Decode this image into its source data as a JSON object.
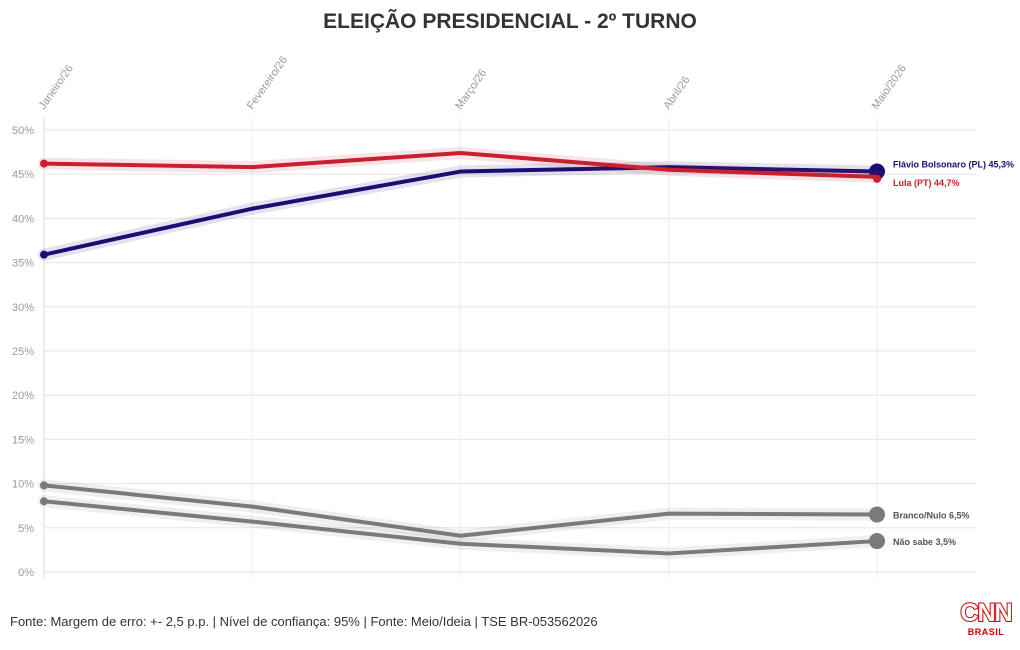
{
  "chart_data": {
    "type": "line",
    "title": "ELEIÇÃO PRESIDENCIAL - 2º TURNO",
    "x": [
      "Janeiro/26",
      "Fevereiro/26",
      "Março/26",
      "Abril/26",
      "Maio/2026"
    ],
    "ylim": [
      0,
      50
    ],
    "y_ticks": [
      "0%",
      "5%",
      "10%",
      "15%",
      "20%",
      "25%",
      "30%",
      "35%",
      "40%",
      "45%",
      "50%"
    ],
    "grid": true,
    "series": [
      {
        "name": "Flávio Bolsonaro (PL)",
        "end_label": "Flávio Bolsonaro (PL) 45,3%",
        "color": "#1a0e72",
        "values": [
          35.9,
          41.1,
          45.3,
          45.8,
          45.3
        ]
      },
      {
        "name": "Lula (PT)",
        "end_label": "Lula (PT) 44,7%",
        "color": "#c8202f",
        "values": [
          46.2,
          45.8,
          47.4,
          45.5,
          44.7
        ]
      },
      {
        "name": "Branco/Nulo",
        "end_label": "Branco/Nulo 6,5%",
        "color": "#7a7a7a",
        "values": [
          9.8,
          7.4,
          4.1,
          6.6,
          6.5
        ]
      },
      {
        "name": "Não sabe",
        "end_label": "Não sabe 3,5%",
        "color": "#7a7a7a",
        "values": [
          8.0,
          5.7,
          3.2,
          2.1,
          3.5
        ]
      }
    ]
  },
  "footer": {
    "source": "Fonte: Margem de erro: +- 2,5 p.p. | Nível de confiança: 95% | Fonte: Meio/Ideia | TSE BR-053562026"
  },
  "logo": {
    "main": "CNN",
    "sub": "BRASIL"
  }
}
